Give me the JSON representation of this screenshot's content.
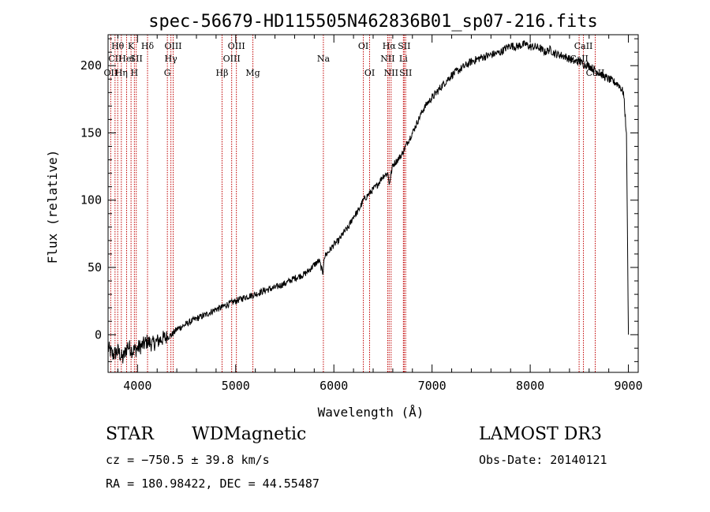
{
  "chart_data": {
    "type": "line",
    "title": "spec-56679-HD115505N462836B01_sp07-216.fits",
    "xlabel": "Wavelength (Å)",
    "ylabel": "Flux (relative)",
    "xlim": [
      3700,
      9100
    ],
    "ylim": [
      -28,
      223
    ],
    "xticks": [
      4000,
      5000,
      6000,
      7000,
      8000,
      9000
    ],
    "xtick_labels": [
      "4000",
      "5000",
      "6000",
      "7000",
      "8000",
      "9000"
    ],
    "yticks": [
      0,
      50,
      100,
      150,
      200
    ],
    "ytick_labels": [
      "0",
      "50",
      "100",
      "150",
      "200"
    ],
    "line_color": "#000000",
    "marker_color": "#c00000",
    "series": [
      {
        "name": "flux",
        "x": [
          3700,
          3750,
          3800,
          3850,
          3900,
          3950,
          4000,
          4050,
          4100,
          4150,
          4200,
          4250,
          4300,
          4350,
          4400,
          4450,
          4500,
          4600,
          4700,
          4800,
          4850,
          4900,
          5000,
          5100,
          5200,
          5300,
          5400,
          5500,
          5600,
          5700,
          5750,
          5800,
          5850,
          5890,
          5900,
          5950,
          6000,
          6050,
          6100,
          6150,
          6200,
          6250,
          6300,
          6350,
          6400,
          6450,
          6500,
          6550,
          6563,
          6600,
          6650,
          6700,
          6750,
          6800,
          6850,
          6900,
          6950,
          7000,
          7100,
          7200,
          7300,
          7400,
          7500,
          7600,
          7700,
          7750,
          7800,
          7850,
          7900,
          7950,
          8000,
          8050,
          8100,
          8150,
          8200,
          8250,
          8300,
          8350,
          8400,
          8450,
          8500,
          8550,
          8600,
          8650,
          8700,
          8750,
          8800,
          8850,
          8900,
          8950,
          8980,
          8990,
          9000
        ],
        "y": [
          -10,
          -15,
          -12,
          -18,
          -8,
          -12,
          -10,
          -8,
          -5,
          -7,
          -5,
          -3,
          -2,
          0,
          4,
          6,
          8,
          12,
          15,
          19,
          20,
          22,
          25,
          28,
          30,
          33,
          35,
          38,
          42,
          45,
          48,
          52,
          55,
          45,
          58,
          62,
          67,
          70,
          76,
          80,
          88,
          92,
          100,
          104,
          108,
          112,
          118,
          120,
          112,
          126,
          130,
          135,
          143,
          150,
          158,
          166,
          172,
          176,
          185,
          193,
          198,
          203,
          206,
          208,
          210,
          213,
          215,
          214,
          215,
          216,
          214,
          214,
          213,
          210,
          212,
          209,
          208,
          207,
          205,
          203,
          203,
          201,
          200,
          197,
          195,
          192,
          190,
          188,
          186,
          180,
          150,
          80,
          0
        ]
      }
    ],
    "spectral_lines": [
      {
        "label": "Hθ",
        "wavelength": 3798,
        "row": 1
      },
      {
        "label": "CII",
        "wavelength": 3771,
        "row": 2
      },
      {
        "label": "OII",
        "wavelength": 3727,
        "row": 3
      },
      {
        "label": "Hη",
        "wavelength": 3835,
        "row": 3
      },
      {
        "label": "HeI",
        "wavelength": 3889,
        "row": 2
      },
      {
        "label": "K",
        "wavelength": 3934,
        "row": 1
      },
      {
        "label": "SII",
        "wavelength": 3987,
        "row": 2
      },
      {
        "label": "H",
        "wavelength": 3968,
        "row": 3
      },
      {
        "label": "Hδ",
        "wavelength": 4102,
        "row": 1
      },
      {
        "label": "OIII",
        "wavelength": 4363,
        "row": 1
      },
      {
        "label": "Hγ",
        "wavelength": 4340,
        "row": 2
      },
      {
        "label": "G",
        "wavelength": 4304,
        "row": 3
      },
      {
        "label": "Hβ",
        "wavelength": 4861,
        "row": 3
      },
      {
        "label": "OIII",
        "wavelength": 5007,
        "row": 1
      },
      {
        "label": "OIII",
        "wavelength": 4959,
        "row": 2
      },
      {
        "label": "Mg",
        "wavelength": 5175,
        "row": 3
      },
      {
        "label": "Na",
        "wavelength": 5893,
        "row": 2
      },
      {
        "label": "OI",
        "wavelength": 6300,
        "row": 1
      },
      {
        "label": "OI",
        "wavelength": 6364,
        "row": 3
      },
      {
        "label": "Hα",
        "wavelength": 6563,
        "row": 1
      },
      {
        "label": "SII",
        "wavelength": 6716,
        "row": 1
      },
      {
        "label": "NII",
        "wavelength": 6548,
        "row": 2
      },
      {
        "label": "Li",
        "wavelength": 6708,
        "row": 2
      },
      {
        "label": "NII",
        "wavelength": 6583,
        "row": 3
      },
      {
        "label": "SII",
        "wavelength": 6731,
        "row": 3
      },
      {
        "label": "CaII",
        "wavelength": 8542,
        "row": 1
      },
      {
        "label": "CaII",
        "wavelength": 8498,
        "row": 2
      },
      {
        "label": "CaII",
        "wavelength": 8662,
        "row": 3
      }
    ]
  },
  "info": {
    "object_class": "STAR",
    "subclass": "WDMagnetic",
    "survey": "LAMOST DR3",
    "redshift_text": "cz = −750.5 ± 39.8 km/s",
    "obs_date_text": "Obs-Date: 20140121",
    "coords_text": "RA = 180.98422, DEC =  44.55487"
  }
}
